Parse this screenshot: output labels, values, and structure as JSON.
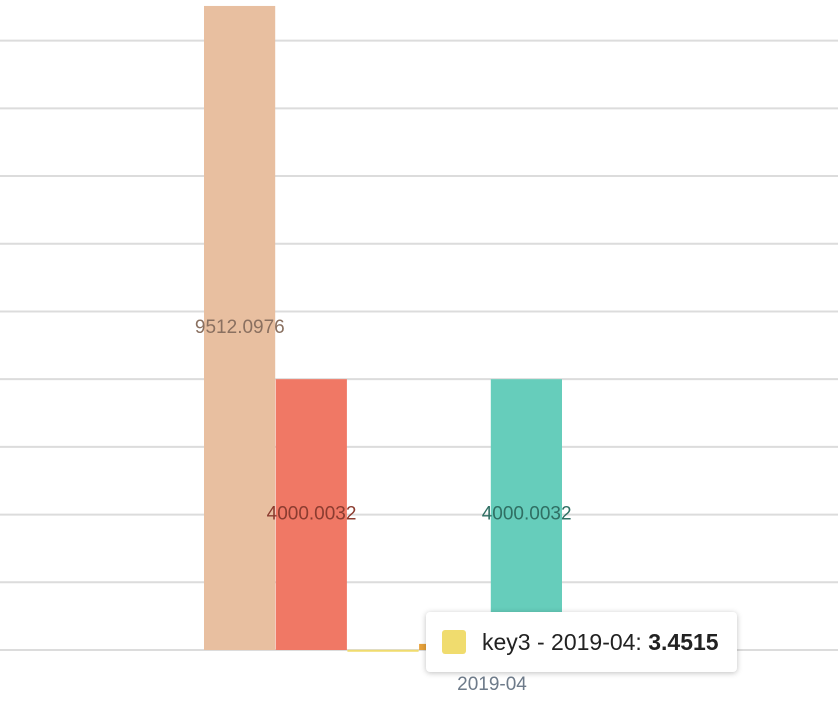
{
  "chart_data": {
    "type": "bar",
    "categories": [
      "2019-04"
    ],
    "series": [
      {
        "color": "#e8bfa0",
        "values": [
          9512.0976
        ],
        "labels": true,
        "label_color": "#8a7060"
      },
      {
        "color": "#f07865",
        "values": [
          4000.0032
        ],
        "labels": true,
        "label_color": "#8b3c30"
      },
      {
        "name": "key3",
        "color": "#f0dc6e",
        "values": [
          3.4515
        ],
        "labels": false
      },
      {
        "color": "#e8a23a",
        "values": [
          90
        ],
        "labels": false
      },
      {
        "color": "#66cdbb",
        "values": [
          4000.0032
        ],
        "labels": true,
        "label_color": "#2f6f63"
      }
    ],
    "ylim": [
      0,
      9600
    ],
    "yticks": [
      0,
      1000,
      2000,
      3000,
      4000,
      5000,
      6000,
      7000,
      8000,
      9000
    ],
    "grid": true,
    "tooltip": {
      "label": "key3 - 2019-04:",
      "series": 2,
      "index": 0
    }
  }
}
